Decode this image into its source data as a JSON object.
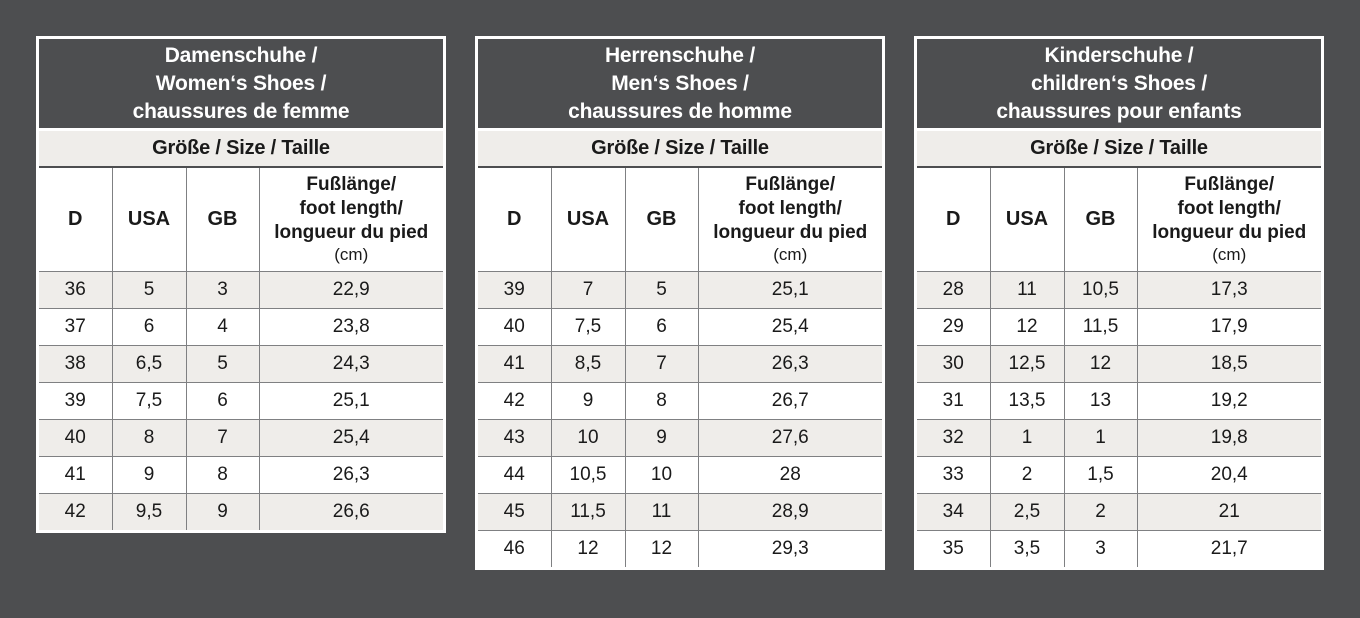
{
  "subheader": "Größe / Size / Taille",
  "columns": {
    "d": "D",
    "usa": "USA",
    "gb": "GB",
    "foot_length_lines": [
      "Fußlänge/",
      "foot length/",
      "longueur du pied"
    ],
    "foot_length_unit": "(cm)"
  },
  "tables": [
    {
      "id": "women",
      "title_lines": [
        "Damenschuhe /",
        "Women‘s Shoes /",
        "chaussures de femme"
      ],
      "rows": [
        [
          "36",
          "5",
          "3",
          "22,9"
        ],
        [
          "37",
          "6",
          "4",
          "23,8"
        ],
        [
          "38",
          "6,5",
          "5",
          "24,3"
        ],
        [
          "39",
          "7,5",
          "6",
          "25,1"
        ],
        [
          "40",
          "8",
          "7",
          "25,4"
        ],
        [
          "41",
          "9",
          "8",
          "26,3"
        ],
        [
          "42",
          "9,5",
          "9",
          "26,6"
        ]
      ]
    },
    {
      "id": "men",
      "title_lines": [
        "Herrenschuhe /",
        "Men‘s Shoes /",
        "chaussures de homme"
      ],
      "rows": [
        [
          "39",
          "7",
          "5",
          "25,1"
        ],
        [
          "40",
          "7,5",
          "6",
          "25,4"
        ],
        [
          "41",
          "8,5",
          "7",
          "26,3"
        ],
        [
          "42",
          "9",
          "8",
          "26,7"
        ],
        [
          "43",
          "10",
          "9",
          "27,6"
        ],
        [
          "44",
          "10,5",
          "10",
          "28"
        ],
        [
          "45",
          "11,5",
          "11",
          "28,9"
        ],
        [
          "46",
          "12",
          "12",
          "29,3"
        ]
      ]
    },
    {
      "id": "children",
      "title_lines": [
        "Kinderschuhe /",
        "children‘s Shoes /",
        "chaussures pour enfants"
      ],
      "rows": [
        [
          "28",
          "11",
          "10,5",
          "17,3"
        ],
        [
          "29",
          "12",
          "11,5",
          "17,9"
        ],
        [
          "30",
          "12,5",
          "12",
          "18,5"
        ],
        [
          "31",
          "13,5",
          "13",
          "19,2"
        ],
        [
          "32",
          "1",
          "1",
          "19,8"
        ],
        [
          "33",
          "2",
          "1,5",
          "20,4"
        ],
        [
          "34",
          "2,5",
          "2",
          "21"
        ],
        [
          "35",
          "3,5",
          "3",
          "21,7"
        ]
      ]
    }
  ],
  "colors": {
    "background": "#4d4e50",
    "header_bg": "#4d4e50",
    "header_text": "#ffffff",
    "row_alt": "#efedea",
    "row_white": "#ffffff",
    "grid_line": "#7f8082",
    "frame": "#ffffff",
    "text": "#1a1a1a"
  }
}
